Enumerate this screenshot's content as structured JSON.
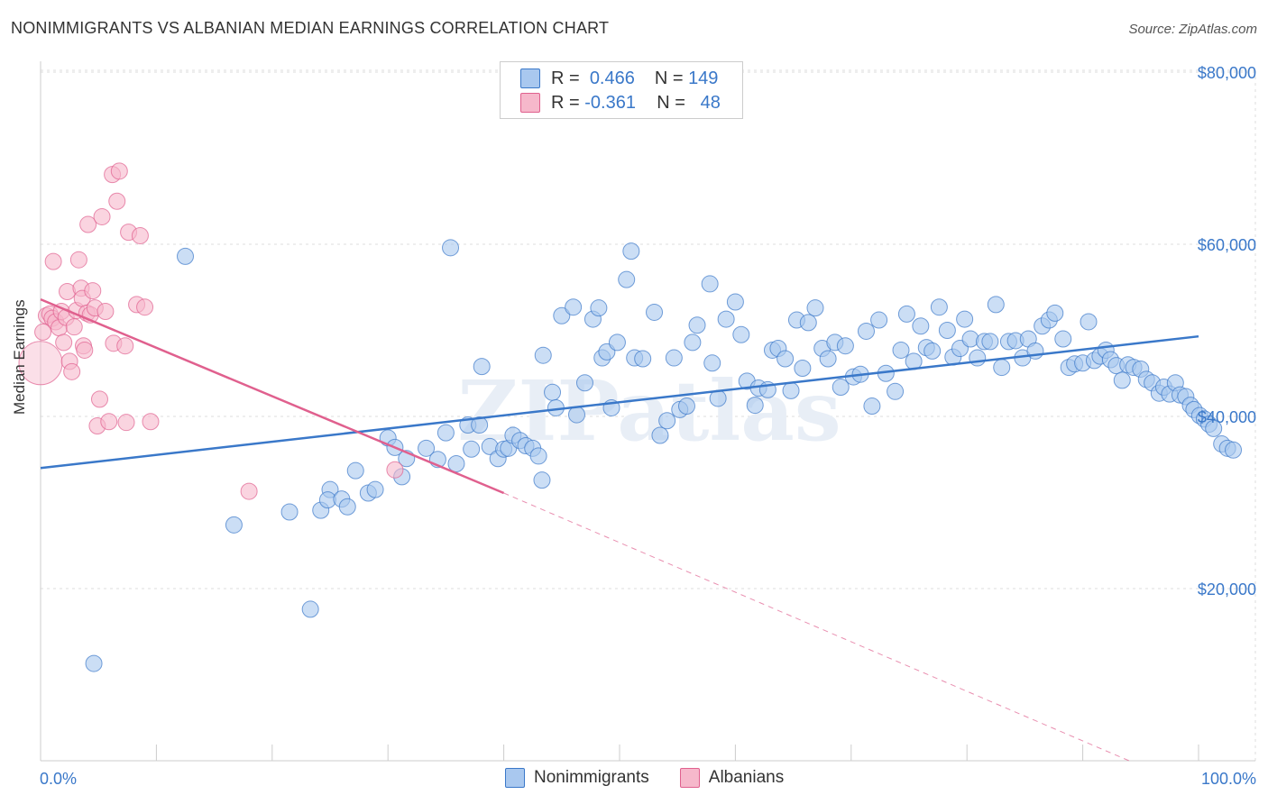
{
  "header": {
    "title": "NONIMMIGRANTS VS ALBANIAN MEDIAN EARNINGS CORRELATION CHART",
    "source": "Source: ZipAtlas.com"
  },
  "legend": {
    "rows": [
      {
        "r_label": "R =",
        "r_value": "0.466",
        "n_label": "N =",
        "n_value": "149"
      },
      {
        "r_label": "R =",
        "r_value": "-0.361",
        "n_label": "N =",
        "n_value": "48"
      }
    ]
  },
  "bottom_legend": {
    "series1": "Nonimmigrants",
    "series2": "Albanians"
  },
  "colors": {
    "blue": "#3a78c9",
    "blue_fill": "#a9c8ef",
    "pink": "#e0608e",
    "pink_fill": "#f6b8cb",
    "axis_text": "#3a78c9"
  },
  "chart_data": {
    "type": "scatter",
    "xlabel": "",
    "ylabel": "Median Earnings",
    "xlim": [
      0,
      100
    ],
    "ylim": [
      0,
      85000
    ],
    "x_tick_labels": [
      "0.0%",
      "100.0%"
    ],
    "y_ticks": [
      20000,
      40000,
      60000,
      80000
    ],
    "y_tick_labels": [
      "$20,000",
      "$40,000",
      "$60,000",
      "$80,000"
    ],
    "grid": true,
    "watermark": "ZIPatlas",
    "series": [
      {
        "name": "Nonimmigrants",
        "color": "#3a78c9",
        "trend": {
          "x": [
            0,
            100
          ],
          "y": [
            34000,
            49300
          ],
          "dashed_extension": false
        },
        "points": [
          [
            4.6,
            11300
          ],
          [
            12.5,
            58600
          ],
          [
            16.7,
            27400
          ],
          [
            21.5,
            28900
          ],
          [
            23.3,
            17600
          ],
          [
            24.2,
            29100
          ],
          [
            25.0,
            31500
          ],
          [
            24.8,
            30300
          ],
          [
            26.0,
            30400
          ],
          [
            26.5,
            29500
          ],
          [
            27.2,
            33700
          ],
          [
            28.3,
            31100
          ],
          [
            28.9,
            31500
          ],
          [
            30.0,
            37500
          ],
          [
            30.6,
            36400
          ],
          [
            31.2,
            33000
          ],
          [
            31.6,
            35100
          ],
          [
            33.3,
            36300
          ],
          [
            34.3,
            35000
          ],
          [
            35.0,
            38100
          ],
          [
            35.4,
            59600
          ],
          [
            35.9,
            34500
          ],
          [
            36.9,
            39000
          ],
          [
            37.2,
            36200
          ],
          [
            37.9,
            39000
          ],
          [
            38.1,
            45800
          ],
          [
            38.8,
            36500
          ],
          [
            39.5,
            35100
          ],
          [
            40.0,
            36200
          ],
          [
            40.4,
            36300
          ],
          [
            40.8,
            37800
          ],
          [
            41.4,
            37200
          ],
          [
            41.9,
            36600
          ],
          [
            42.5,
            36300
          ],
          [
            43.0,
            35400
          ],
          [
            43.3,
            32600
          ],
          [
            43.4,
            47100
          ],
          [
            44.2,
            42800
          ],
          [
            44.5,
            41000
          ],
          [
            45.0,
            51700
          ],
          [
            46.0,
            52700
          ],
          [
            46.3,
            40200
          ],
          [
            47.0,
            43900
          ],
          [
            47.7,
            51300
          ],
          [
            48.2,
            52600
          ],
          [
            48.5,
            46800
          ],
          [
            48.9,
            47500
          ],
          [
            49.3,
            41000
          ],
          [
            49.8,
            48600
          ],
          [
            50.6,
            55900
          ],
          [
            51.0,
            59200
          ],
          [
            51.3,
            46800
          ],
          [
            52.0,
            46700
          ],
          [
            53.0,
            52100
          ],
          [
            53.5,
            37800
          ],
          [
            54.1,
            39500
          ],
          [
            54.7,
            46800
          ],
          [
            55.2,
            40800
          ],
          [
            55.8,
            41200
          ],
          [
            56.3,
            48600
          ],
          [
            56.7,
            50600
          ],
          [
            57.8,
            55400
          ],
          [
            58.0,
            46200
          ],
          [
            58.5,
            42100
          ],
          [
            59.2,
            51300
          ],
          [
            60.0,
            53300
          ],
          [
            60.5,
            49500
          ],
          [
            61.0,
            44100
          ],
          [
            61.7,
            41300
          ],
          [
            62.0,
            43300
          ],
          [
            62.8,
            43100
          ],
          [
            63.2,
            47700
          ],
          [
            63.7,
            47900
          ],
          [
            64.3,
            46700
          ],
          [
            64.8,
            43000
          ],
          [
            65.3,
            51200
          ],
          [
            65.8,
            45600
          ],
          [
            66.3,
            50900
          ],
          [
            66.9,
            52600
          ],
          [
            67.5,
            47900
          ],
          [
            68.0,
            46700
          ],
          [
            68.6,
            48600
          ],
          [
            69.1,
            43400
          ],
          [
            69.5,
            48200
          ],
          [
            70.2,
            44600
          ],
          [
            70.8,
            44900
          ],
          [
            71.3,
            49900
          ],
          [
            71.8,
            41200
          ],
          [
            72.4,
            51200
          ],
          [
            73.0,
            45000
          ],
          [
            73.8,
            42900
          ],
          [
            74.3,
            47700
          ],
          [
            74.8,
            51900
          ],
          [
            75.4,
            46400
          ],
          [
            76.0,
            50500
          ],
          [
            76.5,
            48000
          ],
          [
            77.0,
            47600
          ],
          [
            77.6,
            52700
          ],
          [
            78.3,
            50000
          ],
          [
            78.8,
            46900
          ],
          [
            79.4,
            47900
          ],
          [
            79.8,
            51300
          ],
          [
            80.3,
            49000
          ],
          [
            80.9,
            46800
          ],
          [
            81.5,
            48700
          ],
          [
            82.0,
            48700
          ],
          [
            82.5,
            53000
          ],
          [
            83.0,
            45700
          ],
          [
            83.6,
            48700
          ],
          [
            84.2,
            48800
          ],
          [
            84.8,
            46800
          ],
          [
            85.3,
            49000
          ],
          [
            85.9,
            47600
          ],
          [
            86.5,
            50500
          ],
          [
            87.1,
            51200
          ],
          [
            87.6,
            52000
          ],
          [
            88.3,
            49000
          ],
          [
            88.8,
            45700
          ],
          [
            89.3,
            46100
          ],
          [
            90.0,
            46200
          ],
          [
            90.5,
            51000
          ],
          [
            91.0,
            46500
          ],
          [
            91.5,
            47000
          ],
          [
            92.0,
            47700
          ],
          [
            92.4,
            46600
          ],
          [
            92.9,
            45900
          ],
          [
            93.4,
            44200
          ],
          [
            93.9,
            46000
          ],
          [
            94.4,
            45700
          ],
          [
            95.0,
            45500
          ],
          [
            95.5,
            44300
          ],
          [
            96.0,
            43900
          ],
          [
            96.6,
            42700
          ],
          [
            97.0,
            43400
          ],
          [
            97.5,
            42600
          ],
          [
            98.0,
            43900
          ],
          [
            98.4,
            42500
          ],
          [
            98.9,
            42300
          ],
          [
            99.3,
            41300
          ],
          [
            99.6,
            40800
          ],
          [
            100.1,
            40100
          ],
          [
            100.5,
            39700
          ],
          [
            100.9,
            39100
          ],
          [
            101.3,
            38600
          ],
          [
            102.0,
            36800
          ],
          [
            102.5,
            36300
          ],
          [
            103.0,
            36100
          ]
        ]
      },
      {
        "name": "Albanians",
        "color": "#e0608e",
        "trend": {
          "x": [
            0,
            40
          ],
          "y": [
            53600,
            31100
          ],
          "dashed_extension": {
            "x": [
              40,
              94
            ],
            "y": [
              31100,
              0
            ]
          }
        },
        "points": [
          [
            0.0,
            46200
          ],
          [
            0.2,
            49800
          ],
          [
            0.5,
            51700
          ],
          [
            0.8,
            51900
          ],
          [
            1.0,
            51400
          ],
          [
            1.1,
            58000
          ],
          [
            1.3,
            51000
          ],
          [
            1.6,
            50300
          ],
          [
            1.8,
            52200
          ],
          [
            2.0,
            48600
          ],
          [
            2.2,
            51500
          ],
          [
            2.3,
            54500
          ],
          [
            2.5,
            46400
          ],
          [
            2.7,
            45200
          ],
          [
            2.9,
            50400
          ],
          [
            3.1,
            52300
          ],
          [
            3.3,
            58200
          ],
          [
            3.5,
            54900
          ],
          [
            3.6,
            53700
          ],
          [
            3.7,
            48200
          ],
          [
            3.8,
            47700
          ],
          [
            4.0,
            52000
          ],
          [
            4.1,
            62300
          ],
          [
            4.3,
            51800
          ],
          [
            4.5,
            54600
          ],
          [
            4.7,
            52600
          ],
          [
            4.9,
            38900
          ],
          [
            5.1,
            42000
          ],
          [
            5.3,
            63200
          ],
          [
            5.6,
            52200
          ],
          [
            5.9,
            39400
          ],
          [
            6.2,
            68100
          ],
          [
            6.3,
            48500
          ],
          [
            6.6,
            65000
          ],
          [
            6.8,
            68500
          ],
          [
            7.3,
            48200
          ],
          [
            7.4,
            39300
          ],
          [
            7.6,
            61400
          ],
          [
            8.3,
            53000
          ],
          [
            8.6,
            61000
          ],
          [
            9.0,
            52700
          ],
          [
            9.5,
            39400
          ],
          [
            18.0,
            31300
          ],
          [
            30.6,
            33800
          ]
        ]
      }
    ]
  }
}
